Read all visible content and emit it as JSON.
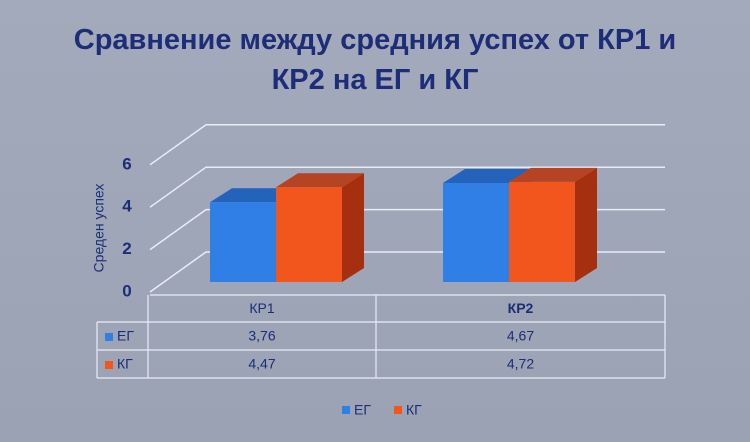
{
  "chart_data": {
    "type": "bar3d",
    "title": "Сравнение между средния успех от КР1 и КР2 на ЕГ и КГ",
    "y_label": "Среден успех",
    "categories": [
      "КР1",
      "КР2"
    ],
    "series": [
      {
        "name": "ЕГ",
        "color": "#2f7fe6",
        "values": [
          3.76,
          4.67
        ],
        "value_labels": [
          "3,76",
          "4,67"
        ]
      },
      {
        "name": "КГ",
        "color": "#f2561d",
        "values": [
          4.47,
          4.72
        ],
        "value_labels": [
          "4,47",
          "4,72"
        ]
      }
    ],
    "ylim": [
      0,
      6
    ],
    "yticks": [
      0,
      2,
      4,
      6
    ],
    "grid": true
  }
}
